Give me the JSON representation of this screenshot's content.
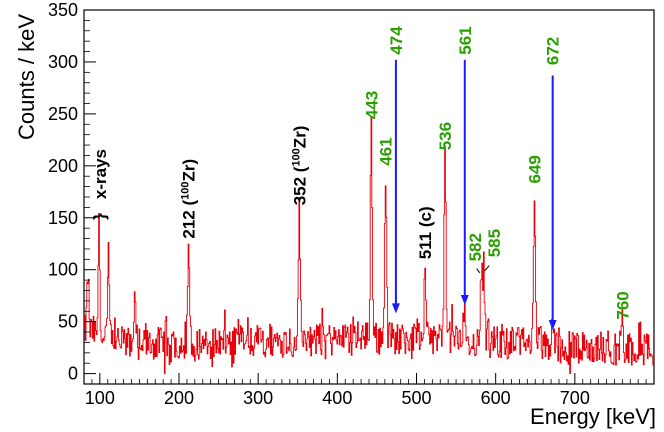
{
  "chart_data": {
    "type": "line",
    "title": "",
    "xlabel": "Energy [keV]",
    "ylabel": "Counts / keV",
    "xlim": [
      80,
      800
    ],
    "ylim": [
      -10,
      350
    ],
    "x_ticks": [
      100,
      200,
      300,
      400,
      500,
      600,
      700
    ],
    "y_ticks": [
      0,
      50,
      100,
      150,
      200,
      250,
      300,
      350
    ],
    "grid": false,
    "series_color": "#e8000b",
    "peaks": [
      {
        "x": 85,
        "y": 95
      },
      {
        "x": 99,
        "y": 140
      },
      {
        "x": 111,
        "y": 105
      },
      {
        "x": 144,
        "y": 80
      },
      {
        "x": 212,
        "y": 125
      },
      {
        "x": 352,
        "y": 155
      },
      {
        "x": 443,
        "y": 237
      },
      {
        "x": 461,
        "y": 192
      },
      {
        "x": 511,
        "y": 103
      },
      {
        "x": 536,
        "y": 208
      },
      {
        "x": 561,
        "y": 65
      },
      {
        "x": 582,
        "y": 95
      },
      {
        "x": 585,
        "y": 100
      },
      {
        "x": 649,
        "y": 175
      },
      {
        "x": 672,
        "y": 57
      },
      {
        "x": 760,
        "y": 47
      }
    ],
    "annotations": [
      {
        "text": "x-rays",
        "x": 100,
        "y": 168,
        "rotated": true,
        "color": "#000000",
        "name": "label-x-rays"
      },
      {
        "text": "}",
        "x": 99,
        "y": 148,
        "rotated": true,
        "color": "#000000",
        "name": "label-x-rays-brace"
      },
      {
        "text": "212 (",
        "sup": "100",
        "after": "Zr)",
        "x": 212,
        "y": 130,
        "rotated": true,
        "color": "#000000",
        "name": "label-212"
      },
      {
        "text": "352 (",
        "sup": "100",
        "after": "Zr)",
        "x": 352,
        "y": 162,
        "rotated": true,
        "color": "#000000",
        "name": "label-352"
      },
      {
        "text": "443",
        "x": 443,
        "y": 245,
        "rotated": true,
        "color": "#2aa000",
        "name": "label-443"
      },
      {
        "text": "461",
        "x": 461,
        "y": 200,
        "rotated": true,
        "color": "#2aa000",
        "name": "label-461"
      },
      {
        "text": "474",
        "x": 474,
        "y": 307,
        "rotated": true,
        "color": "#2aa000",
        "name": "label-474"
      },
      {
        "text": "511 (c)",
        "x": 511,
        "y": 110,
        "rotated": true,
        "color": "#000000",
        "name": "label-511"
      },
      {
        "text": "536",
        "x": 536,
        "y": 215,
        "rotated": true,
        "color": "#2aa000",
        "name": "label-536"
      },
      {
        "text": "561",
        "x": 561,
        "y": 307,
        "rotated": true,
        "color": "#2aa000",
        "name": "label-561"
      },
      {
        "text": "582",
        "x": 574,
        "y": 108,
        "rotated": true,
        "color": "#2aa000",
        "name": "label-582"
      },
      {
        "text": "585",
        "x": 598,
        "y": 112,
        "rotated": true,
        "color": "#2aa000",
        "name": "label-585"
      },
      {
        "text": "649",
        "x": 649,
        "y": 183,
        "rotated": true,
        "color": "#2aa000",
        "name": "label-649"
      },
      {
        "text": "672",
        "x": 672,
        "y": 297,
        "rotated": true,
        "color": "#2aa000",
        "name": "label-672"
      },
      {
        "text": "760",
        "x": 760,
        "y": 52,
        "rotated": true,
        "color": "#2aa000",
        "name": "label-760"
      }
    ],
    "arrows": [
      {
        "x": 474,
        "y_from": 302,
        "y_to": 58,
        "color": "#1a1aff",
        "name": "arrow-474"
      },
      {
        "x": 561,
        "y_from": 302,
        "y_to": 66,
        "color": "#1a1aff",
        "name": "arrow-561"
      },
      {
        "x": 672,
        "y_from": 287,
        "y_to": 42,
        "color": "#1a1aff",
        "name": "arrow-672"
      }
    ]
  }
}
